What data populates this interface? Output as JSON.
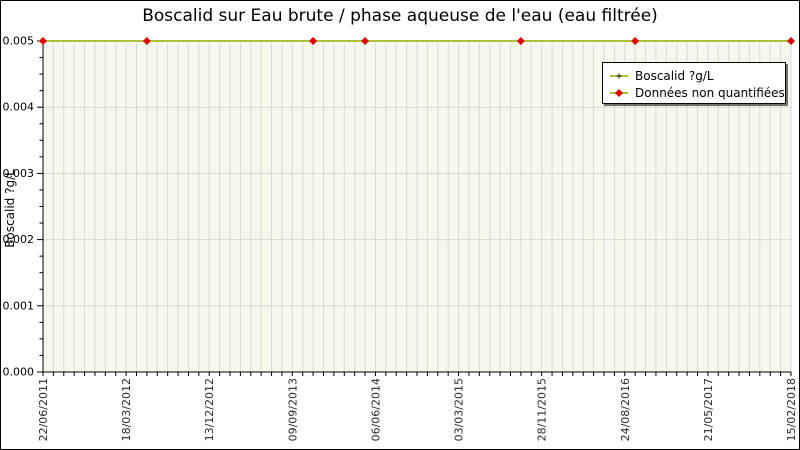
{
  "window": {
    "title": "Boscalid sur Eau brute / phase aqueuse de l'eau (eau filtrée)"
  },
  "colors": {
    "series_line": "#a9c33f",
    "series_point": "#33401a",
    "nonquant_marker": "#e00000",
    "plot_background": "#f7f7ee",
    "gridline": "#d9d9d9",
    "axis": "#000000",
    "tick_label": "#2a2a2a",
    "legend_background": "#ffffff",
    "legend_border": "#000000"
  },
  "legend": {
    "entries": [
      {
        "label": "Boscalid ?g/L",
        "marker": "green-line-with-dot"
      },
      {
        "label": "Données non quantifiées",
        "marker": "green-line-with-red-diamond"
      }
    ]
  },
  "chart_data": {
    "type": "line",
    "title": "Boscalid sur Eau brute / phase aqueuse de l'eau (eau filtrée)",
    "xlabel": "",
    "ylabel": "Boscalid ?g/L",
    "ylim": [
      0.0,
      0.005
    ],
    "y_tick_labels": [
      "0.000",
      "0.001",
      "0.002",
      "0.003",
      "0.004",
      "0.005"
    ],
    "y_major_step": 0.001,
    "y_minor_divisions": 4,
    "x_tick_labels": [
      "22/06/2011",
      "18/03/2012",
      "13/12/2012",
      "09/09/2013",
      "06/06/2014",
      "03/03/2015",
      "28/11/2015",
      "24/08/2016",
      "21/05/2017",
      "15/02/2018"
    ],
    "n_points": 73,
    "x_label_every": 8,
    "grid": true,
    "legend_position": "top-right",
    "series": [
      {
        "name": "Boscalid ?g/L",
        "style": "constant-line",
        "constant_value": 0.005
      },
      {
        "name": "Données non quantifiées",
        "style": "diamond-markers",
        "value": 0.005,
        "point_indices": [
          0,
          10,
          26,
          31,
          46,
          57,
          72
        ],
        "approx_dates": [
          "22/06/2011",
          "25/05/2012",
          "16/11/2013",
          "03/05/2014",
          "21/09/2015",
          "27/09/2016",
          "15/02/2018"
        ]
      }
    ]
  }
}
